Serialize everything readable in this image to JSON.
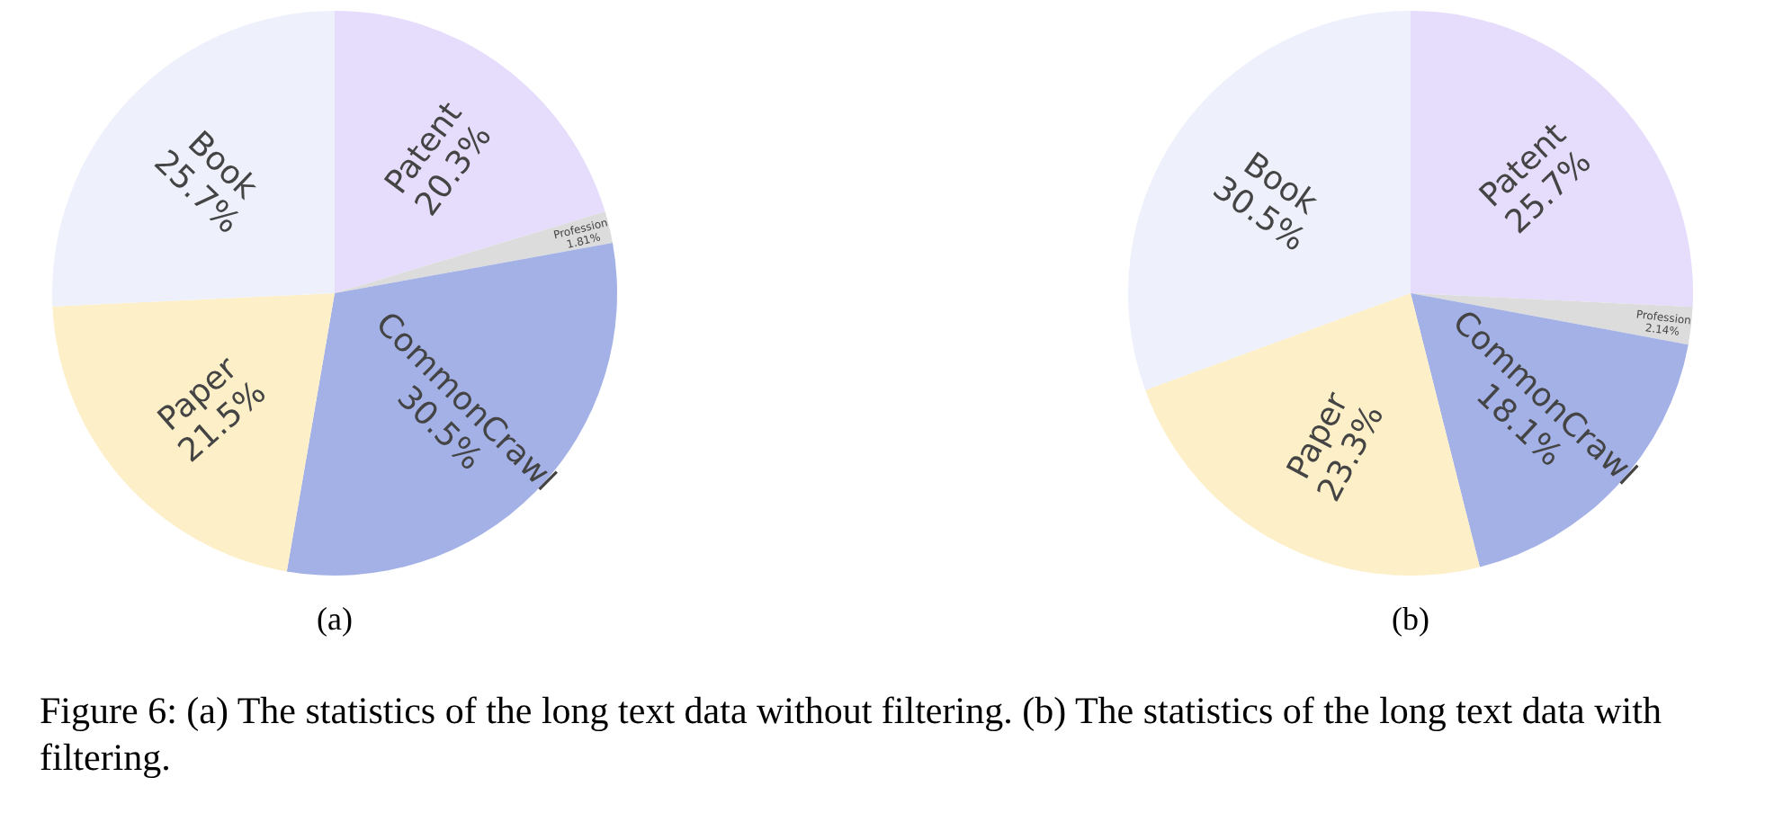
{
  "chart_data": [
    {
      "type": "pie",
      "subtitle": "(a)",
      "categories": [
        "Patent",
        "Profession",
        "CommonCrawl",
        "Paper",
        "Book"
      ],
      "values": [
        20.3,
        1.81,
        30.5,
        21.5,
        25.7
      ],
      "value_labels": [
        "20.3%",
        "1.81%",
        "30.5%",
        "21.5%",
        "25.7%"
      ],
      "colors": [
        "#e6ddfc",
        "#dcdcdc",
        "#a3b1e6",
        "#fdefc7",
        "#eef1fc"
      ],
      "annotations": [
        "Figure 6: (a) The statistics of the long text data without filtering. (b) The statistics of the long text data with filtering."
      ]
    },
    {
      "type": "pie",
      "subtitle": "(b)",
      "categories": [
        "Patent",
        "Profession",
        "CommonCrawl",
        "Paper",
        "Book"
      ],
      "values": [
        25.7,
        2.14,
        18.1,
        23.3,
        30.5
      ],
      "value_labels": [
        "25.7%",
        "2.14%",
        "18.1%",
        "23.3%",
        "30.5%"
      ],
      "colors": [
        "#e6ddfc",
        "#dcdcdc",
        "#a3b1e6",
        "#fdefc7",
        "#eef1fc"
      ]
    }
  ]
}
